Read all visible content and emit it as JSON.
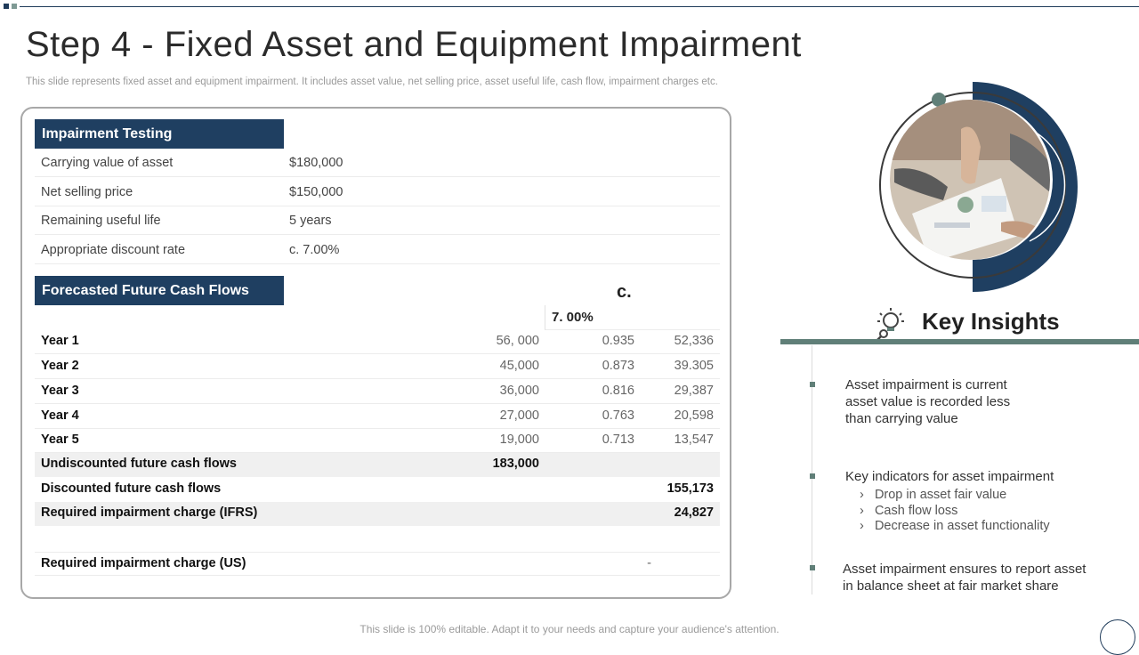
{
  "slide": {
    "title": "Step 4 - Fixed Asset and Equipment Impairment",
    "subtitle": "This slide represents fixed asset and equipment impairment. It includes asset value, net selling price, asset useful life, cash flow, impairment charges etc.",
    "footer": "This slide is 100% editable. Adapt it to your needs and capture your audience's attention."
  },
  "impairment_testing": {
    "header": "Impairment Testing",
    "rows": [
      {
        "label": "Carrying value  of asset",
        "value": "$180,000"
      },
      {
        "label": "Net selling price",
        "value": "$150,000"
      },
      {
        "label": "Remaining useful life",
        "value": "5 years"
      },
      {
        "label": "Appropriate discount rate",
        "value": "c. 7.00%"
      }
    ]
  },
  "forecast": {
    "header": "Forecasted  Future Cash  Flows",
    "col_mark": "c.",
    "rate_label": "7. 00%",
    "years": [
      {
        "label": "Year 1",
        "cash": "56, 000",
        "factor": "0.935",
        "pv": "52,336"
      },
      {
        "label": "Year 2",
        "cash": "45,000",
        "factor": "0.873",
        "pv": "39.305"
      },
      {
        "label": "Year 3",
        "cash": "36,000",
        "factor": "0.816",
        "pv": "29,387"
      },
      {
        "label": "Year 4",
        "cash": "27,000",
        "factor": "0.763",
        "pv": "20,598"
      },
      {
        "label": "Year 5",
        "cash": "19,000",
        "factor": "0.713",
        "pv": "13,547"
      }
    ],
    "undiscounted": {
      "label": "Undiscounted future cash flows",
      "value": "183,000"
    },
    "discounted": {
      "label": "Discounted future cash flows",
      "value": "155,173"
    },
    "ifrs": {
      "label": "Required impairment charge (IFRS)",
      "value": "24,827"
    },
    "us": {
      "label": "Required impairment charge (US)",
      "value": "-"
    }
  },
  "insights": {
    "title": "Key Insights",
    "point1": [
      "Asset impairment is current",
      "asset value is recorded less",
      "than carrying value"
    ],
    "point2": {
      "text": "Key indicators for asset impairment",
      "bullets": [
        "Drop in asset fair value",
        "Cash flow loss",
        "Decrease in asset functionality"
      ],
      "bullet_glyph": "›"
    },
    "point3": [
      "Asset impairment ensures to report asset",
      "in balance sheet at fair market share"
    ]
  },
  "colors": {
    "navy": "#1f3f61",
    "sage": "#607f78"
  }
}
